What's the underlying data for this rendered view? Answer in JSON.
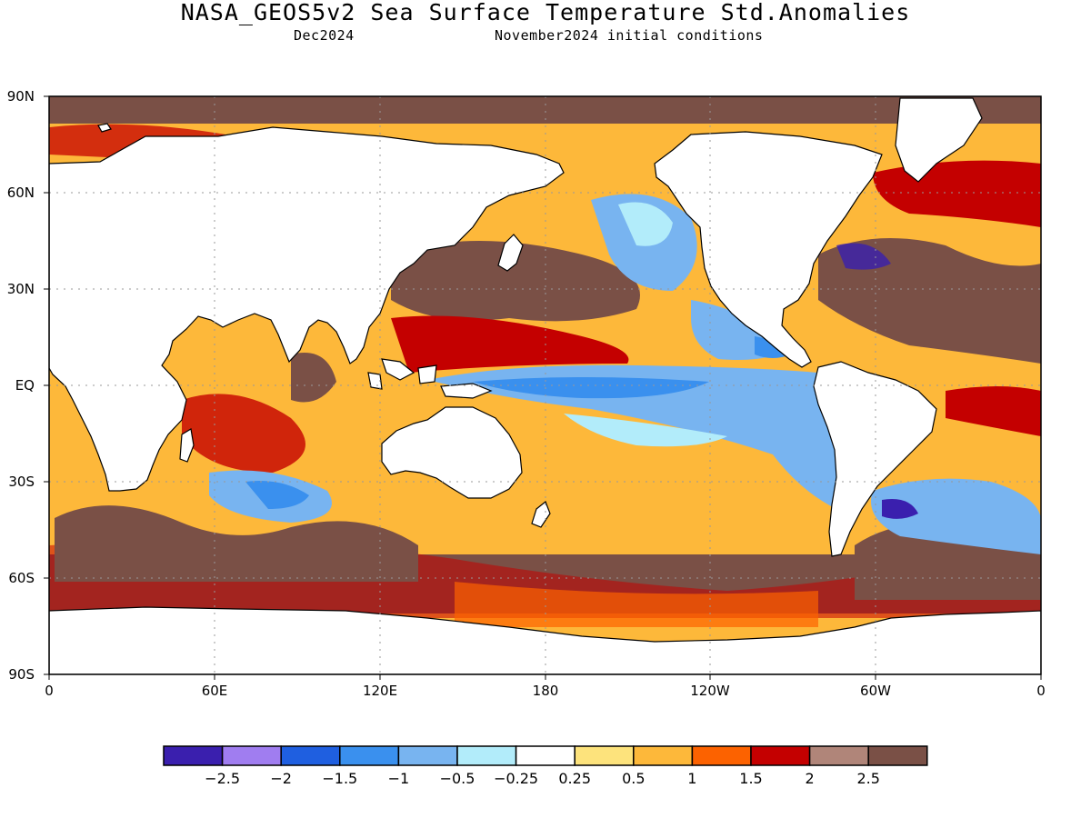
{
  "title": "NASA_GEOS5v2 Sea Surface Temperature Std.Anomalies",
  "valid_month": "Dec2024",
  "init_conditions": "November2024 initial conditions",
  "lat_labels": [
    "90N",
    "60N",
    "30N",
    "EQ",
    "30S",
    "60S",
    "90S"
  ],
  "lon_labels": [
    "0",
    "60E",
    "120E",
    "180",
    "120W",
    "60W",
    "0"
  ],
  "colorbar": {
    "colors": [
      "#3a1fae",
      "#a07df0",
      "#1f5fe0",
      "#3a90ee",
      "#78b4f0",
      "#b2ecfa",
      "#ffffff",
      "#fde37c",
      "#fdb83a",
      "#fc6200",
      "#c40000",
      "#b08579",
      "#7a5046"
    ],
    "labels": [
      "−2.5",
      "−2",
      "−1.5",
      "−1",
      "−0.5",
      "−0.25",
      "0.25",
      "0.5",
      "1",
      "1.5",
      "2",
      "2.5"
    ]
  },
  "colors": {
    "land": "#ffffff",
    "extreme_positive": "#7a5046",
    "strong_negative": "#78b4f0"
  }
}
